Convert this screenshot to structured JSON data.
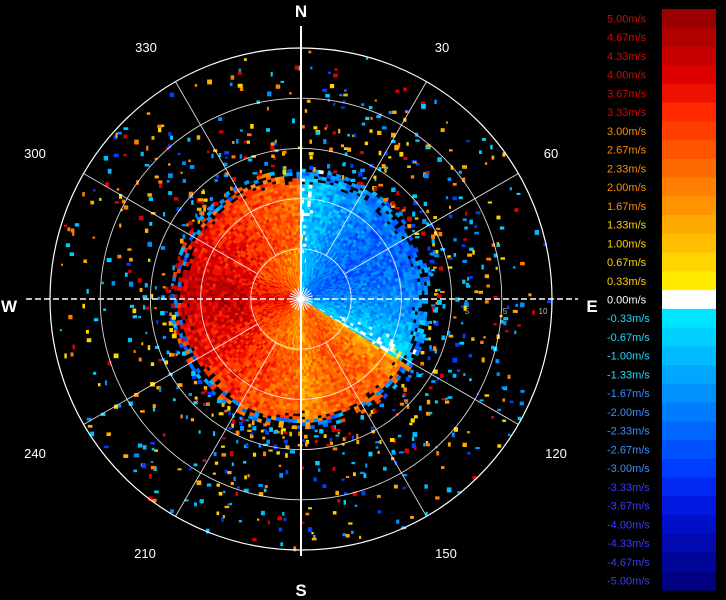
{
  "chart_data": {
    "type": "heatmap",
    "subtype": "polar-ppi-doppler-velocity",
    "title": "",
    "cardinals": [
      "N",
      "E",
      "S",
      "W"
    ],
    "azimuth_labels": [
      "30",
      "60",
      "120",
      "150",
      "210",
      "240",
      "300",
      "330"
    ],
    "range_labels": [
      "5",
      "5",
      "10"
    ],
    "rings": 5,
    "grid": true,
    "colorbar": {
      "placement": "right",
      "levels": [
        {
          "label": "5.00m/s",
          "value": 5.0,
          "color": "#9a0000"
        },
        {
          "label": "4.67m/s",
          "value": 4.67,
          "color": "#b00000"
        },
        {
          "label": "4.33m/s",
          "value": 4.33,
          "color": "#c60000"
        },
        {
          "label": "4.00m/s",
          "value": 4.0,
          "color": "#dc0000"
        },
        {
          "label": "3.67m/s",
          "value": 3.67,
          "color": "#ee1100"
        },
        {
          "label": "3.33m/s",
          "value": 3.33,
          "color": "#ff2a00"
        },
        {
          "label": "3.00m/s",
          "value": 3.0,
          "color": "#ff3f00"
        },
        {
          "label": "2.67m/s",
          "value": 2.67,
          "color": "#ff5400"
        },
        {
          "label": "2.33m/s",
          "value": 2.33,
          "color": "#ff6a00"
        },
        {
          "label": "2.00m/s",
          "value": 2.0,
          "color": "#ff7f00"
        },
        {
          "label": "1.67m/s",
          "value": 1.67,
          "color": "#ff9400"
        },
        {
          "label": "1.33m/s",
          "value": 1.33,
          "color": "#ffaa00"
        },
        {
          "label": "1.00m/s",
          "value": 1.0,
          "color": "#ffbf00"
        },
        {
          "label": "0.67m/s",
          "value": 0.67,
          "color": "#ffd400"
        },
        {
          "label": "0.33m/s",
          "value": 0.33,
          "color": "#ffea00"
        },
        {
          "label": "0.00m/s",
          "value": 0.0,
          "color": "#ffffff"
        },
        {
          "label": "-0.33m/s",
          "value": -0.33,
          "color": "#00e5ff"
        },
        {
          "label": "-0.67m/s",
          "value": -0.67,
          "color": "#00d0ff"
        },
        {
          "label": "-1.00m/s",
          "value": -1.0,
          "color": "#00bbff"
        },
        {
          "label": "-1.33m/s",
          "value": -1.33,
          "color": "#00a6ff"
        },
        {
          "label": "-1.67m/s",
          "value": -1.67,
          "color": "#0091ff"
        },
        {
          "label": "-2.00m/s",
          "value": -2.0,
          "color": "#007cff"
        },
        {
          "label": "-2.33m/s",
          "value": -2.33,
          "color": "#0067ff"
        },
        {
          "label": "-2.67m/s",
          "value": -2.67,
          "color": "#0052ff"
        },
        {
          "label": "-3.00m/s",
          "value": -3.0,
          "color": "#003dff"
        },
        {
          "label": "-3.33m/s",
          "value": -3.33,
          "color": "#0028f0"
        },
        {
          "label": "-3.67m/s",
          "value": -3.67,
          "color": "#0018e0"
        },
        {
          "label": "-4.00m/s",
          "value": -4.0,
          "color": "#0010c8"
        },
        {
          "label": "-4.33m/s",
          "value": -4.33,
          "color": "#000ab0"
        },
        {
          "label": "-4.67m/s",
          "value": -4.67,
          "color": "#000698"
        },
        {
          "label": "-5.00m/s",
          "value": -5.0,
          "color": "#000080"
        }
      ],
      "label_colors": {
        "positive_strong": "#e00000",
        "positive_mid": "#ff8c00",
        "positive_weak": "#ffd000",
        "zero": "#ffffff",
        "negative_weak": "#22d8ff",
        "negative_mid": "#3a8cff",
        "negative_strong": "#3a3aff"
      }
    },
    "velocity_field": {
      "description_of_pattern": "dipole",
      "receding_sector_deg": [
        180,
        360
      ],
      "approaching_sector_deg": [
        0,
        120
      ],
      "max_abs_velocity": 5.0
    }
  }
}
